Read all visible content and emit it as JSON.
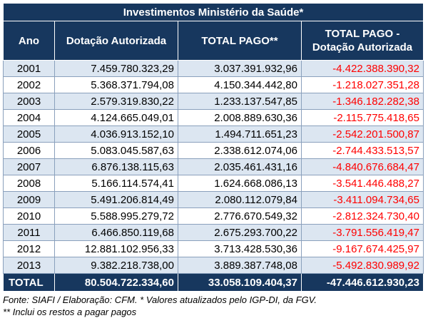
{
  "title": "Investimentos Ministério da Saúde*",
  "columns": [
    "Ano",
    "Dotação Autorizada",
    "TOTAL PAGO**",
    "TOTAL PAGO -",
    "Dotação Autorizada"
  ],
  "rows": [
    {
      "year": "2001",
      "dotacao": "7.459.780.323,29",
      "pago": "3.037.391.932,96",
      "diff": "-4.422.388.390,32"
    },
    {
      "year": "2002",
      "dotacao": "5.368.371.794,08",
      "pago": "4.150.344.442,80",
      "diff": "-1.218.027.351,28"
    },
    {
      "year": "2003",
      "dotacao": "2.579.319.830,22",
      "pago": "1.233.137.547,85",
      "diff": "-1.346.182.282,38"
    },
    {
      "year": "2004",
      "dotacao": "4.124.665.049,01",
      "pago": "2.008.889.630,36",
      "diff": "-2.115.775.418,65"
    },
    {
      "year": "2005",
      "dotacao": "4.036.913.152,10",
      "pago": "1.494.711.651,23",
      "diff": "-2.542.201.500,87"
    },
    {
      "year": "2006",
      "dotacao": "5.083.045.587,63",
      "pago": "2.338.612.074,06",
      "diff": "-2.744.433.513,57"
    },
    {
      "year": "2007",
      "dotacao": "6.876.138.115,63",
      "pago": "2.035.461.431,16",
      "diff": "-4.840.676.684,47"
    },
    {
      "year": "2008",
      "dotacao": "5.166.114.574,41",
      "pago": "1.624.668.086,13",
      "diff": "-3.541.446.488,27"
    },
    {
      "year": "2009",
      "dotacao": "5.491.206.814,49",
      "pago": "2.080.112.079,84",
      "diff": "-3.411.094.734,65"
    },
    {
      "year": "2010",
      "dotacao": "5.588.995.279,72",
      "pago": "2.776.670.549,32",
      "diff": "-2.812.324.730,40"
    },
    {
      "year": "2011",
      "dotacao": "6.466.850.119,68",
      "pago": "2.675.293.700,22",
      "diff": "-3.791.556.419,47"
    },
    {
      "year": "2012",
      "dotacao": "12.881.102.956,33",
      "pago": "3.713.428.530,36",
      "diff": "-9.167.674.425,97"
    },
    {
      "year": "2013",
      "dotacao": "9.382.218.738,00",
      "pago": "3.889.387.748,08",
      "diff": "-5.492.830.989,92"
    }
  ],
  "total": {
    "label": "TOTAL",
    "dotacao": "80.504.722.334,60",
    "pago": "33.058.109.404,37",
    "diff": "-47.446.612.930,23"
  },
  "footer": {
    "source": "Fonte: SIAFI / Elaboração: CFM. * Valores atualizados pelo IGP-DI, da FGV.",
    "note": "** Inclui os restos a pagar pagos"
  },
  "colors": {
    "header_bg": "#17375e",
    "negative": "#ff0000",
    "stripe": "#dce6f1"
  }
}
